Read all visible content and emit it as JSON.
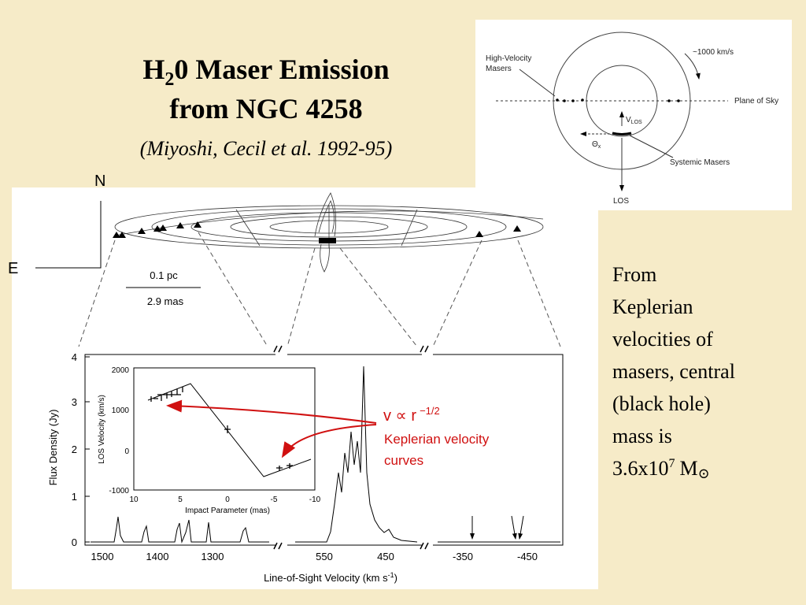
{
  "title": {
    "line1": {
      "main": "H",
      "sub": "2",
      "rest": "0 Maser Emission"
    },
    "line2": "from NGC 4258",
    "subtitle": "(Miyoshi, Cecil et al. 1992-95)"
  },
  "diagram": {
    "high_velocity": [
      "High-Velocity",
      "Masers"
    ],
    "speed": "~1000 km/s",
    "plane": "Plane of Sky",
    "vlos": {
      "v": "V",
      "sub": "LOS"
    },
    "theta": {
      "t": "Θ",
      "sub": "x"
    },
    "systemic": "Systemic Masers",
    "los": "LOS"
  },
  "map": {
    "north": "N",
    "east": "E",
    "scale_pc": "0.1 pc",
    "scale_mas": "2.9 mas"
  },
  "spectrum": {
    "ylabel": "Flux Density (Jy)",
    "yticks": [
      "0",
      "1",
      "2",
      "3",
      "4"
    ],
    "xticks": [
      "1500",
      "1400",
      "1300",
      "550",
      "450",
      "-350",
      "-450"
    ],
    "xlabel": {
      "main": "Line-of-Sight Velocity (km s",
      "sup": "-1",
      "close": ")"
    }
  },
  "inset": {
    "ylabel": "LOS Velocity (km/s)",
    "yticks": [
      "2000",
      "1000",
      "0",
      "-1000"
    ],
    "xticks": [
      "10",
      "5",
      "0",
      "-5",
      "-10"
    ],
    "xlabel": "Impact Parameter (mas)"
  },
  "annotation": {
    "main": "v ∝ r",
    "sup": "−1/2",
    "caption": [
      "Keplerian velocity",
      "curves"
    ]
  },
  "text": {
    "lines": [
      "From",
      "Keplerian",
      "velocities of",
      "masers, central",
      "(black hole)",
      "mass is"
    ],
    "last": {
      "main": "3.6x10",
      "sup": "7",
      "unit": "M",
      "sun": "⊙"
    }
  }
}
